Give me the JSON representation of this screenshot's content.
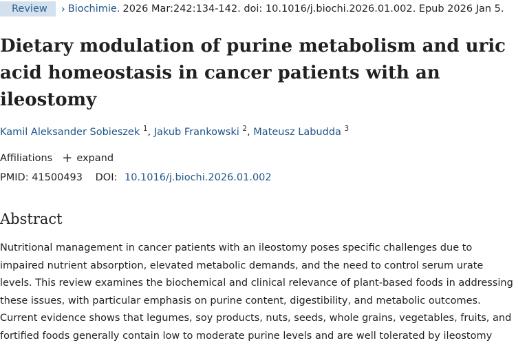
{
  "article_type_badge": "Review",
  "citation": {
    "journal": "Biochimie.",
    "details": "2026 Mar:242:134-142. doi: 10.1016/j.biochi.2026.01.002. Epub 2026 Jan 5."
  },
  "title": "Dietary modulation of purine metabolism and uric acid homeostasis in cancer patients with an ileostomy",
  "authors": [
    {
      "name": "Kamil Aleksander Sobieszek",
      "sup": "1"
    },
    {
      "name": "Jakub Frankowski",
      "sup": "2"
    },
    {
      "name": "Mateusz Labudda",
      "sup": "3"
    }
  ],
  "affiliations": {
    "label": "Affiliations",
    "expand_label": "expand"
  },
  "identifiers": {
    "pmid_label": "PMID:",
    "pmid": "41500493",
    "doi_label": "DOI:",
    "doi": "10.1016/j.biochi.2026.01.002"
  },
  "abstract": {
    "heading": "Abstract",
    "lines": [
      "Nutritional management in cancer patients with an ileostomy poses specific challenges due to",
      "impaired nutrient absorption, elevated metabolic demands, and the need to control serum urate",
      "levels. This review examines the biochemical and clinical relevance of plant-based foods in addressing",
      "these issues, with particular emphasis on purine content, digestibility, and metabolic outcomes.",
      "Current evidence shows that legumes, soy products, nuts, seeds, whole grains, vegetables, fruits, and",
      "fortified foods generally contain low to moderate purine levels and are well tolerated by ileostomy"
    ]
  }
}
